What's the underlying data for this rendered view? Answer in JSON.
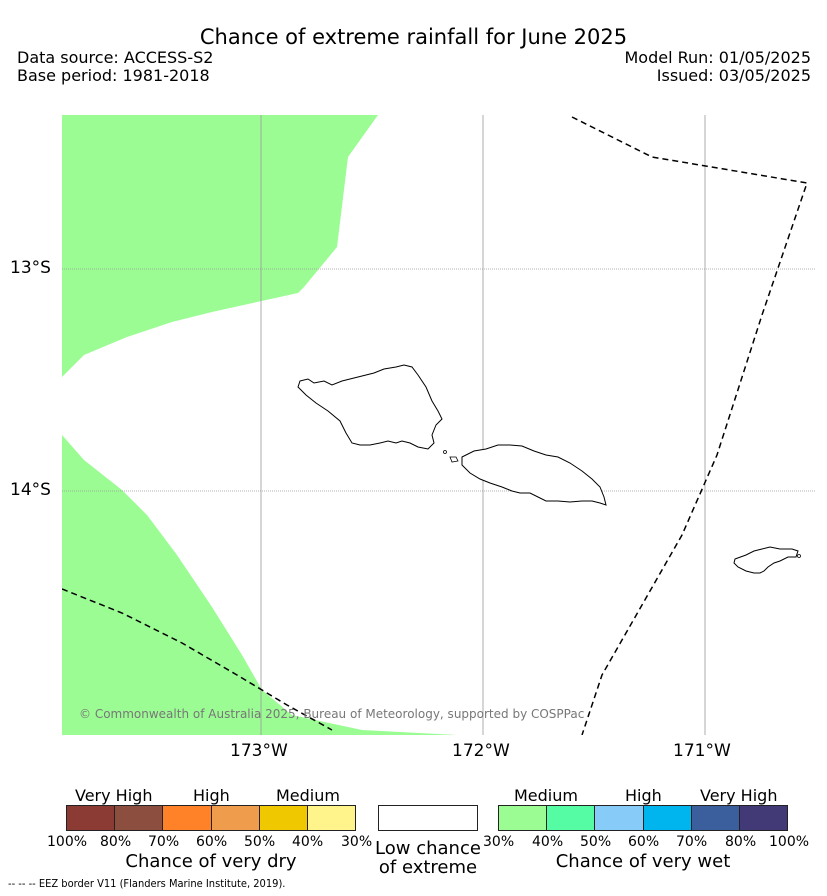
{
  "header": {
    "title": "Chance of extreme rainfall for June 2025",
    "data_source": "Data source: ACCESS-S2",
    "base_period": "Base period: 1981-2018",
    "model_run": "Model Run: 01/05/2025",
    "issued": "Issued: 03/05/2025"
  },
  "map": {
    "lat_labels": [
      "13°S",
      "14°S"
    ],
    "lon_labels": [
      "173°W",
      "172°W",
      "171°W"
    ],
    "credit": "© Commonwealth of Australia 2025, Bureau of Meteorology, supported by COSPPac",
    "colors": {
      "wet_medium": "#9cfc94",
      "land_outline": "#000000",
      "grid": "#999999",
      "eez_border": "#000000"
    }
  },
  "legend": {
    "dry": {
      "headers": [
        "Very High",
        "High",
        "Medium"
      ],
      "ticks": [
        "100%",
        "80%",
        "70%",
        "60%",
        "50%",
        "40%",
        "30%"
      ],
      "caption": "Chance of very dry",
      "colors": [
        "#8b3a34",
        "#8c4e3f",
        "#ff8229",
        "#ef9c4c",
        "#f0c800",
        "#fff48c"
      ]
    },
    "low": {
      "caption_line1": "Low chance",
      "caption_line2": "of extreme",
      "color": "#ffffff"
    },
    "wet": {
      "headers": [
        "Medium",
        "High",
        "Very High"
      ],
      "ticks": [
        "30%",
        "40%",
        "50%",
        "60%",
        "70%",
        "80%",
        "100%"
      ],
      "caption": "Chance of very wet",
      "colors": [
        "#9cfc94",
        "#55fca4",
        "#87cbf9",
        "#00b4ee",
        "#3a5f9c",
        "#413a77"
      ]
    }
  },
  "footer": {
    "eez_note": "--  --  -- EEZ border V11 (Flanders Marine Institute, 2019)."
  }
}
